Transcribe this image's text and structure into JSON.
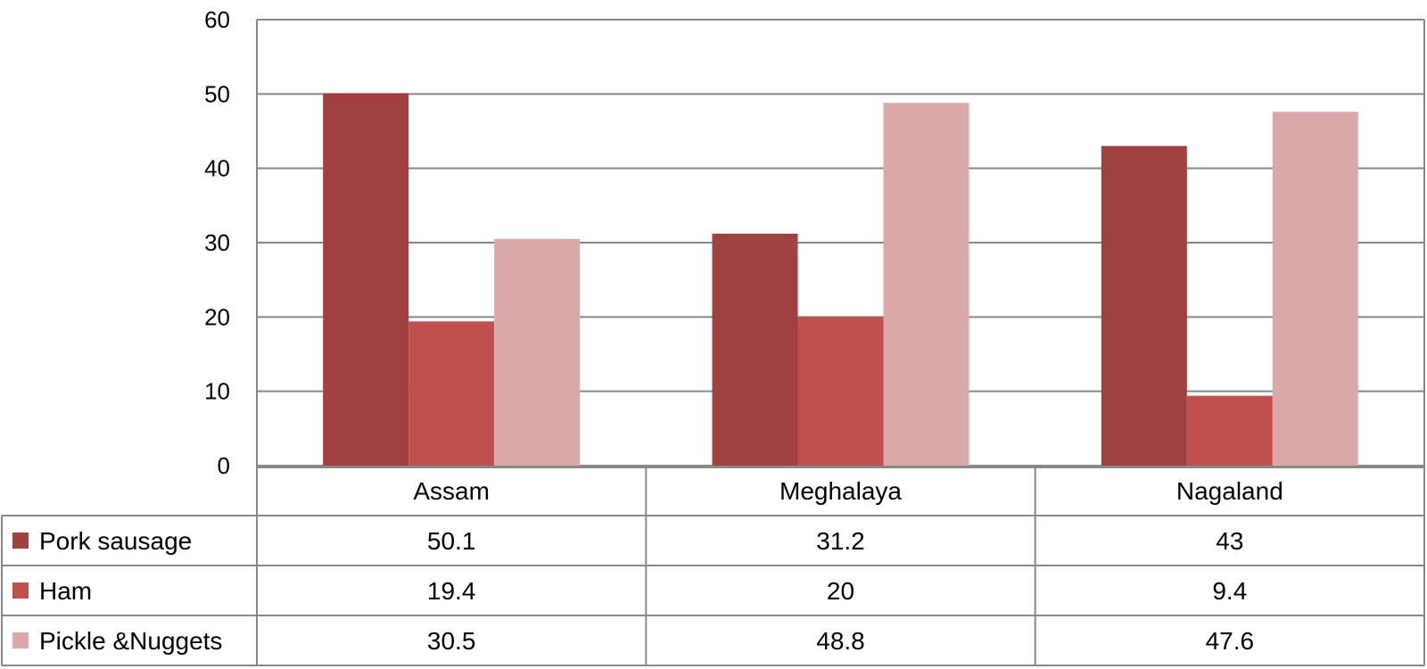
{
  "chart_data": {
    "type": "bar",
    "categories": [
      "Assam",
      "Meghalaya",
      "Nagaland"
    ],
    "series": [
      {
        "name": "Pork sausage",
        "values": [
          50.1,
          31.2,
          43
        ],
        "labels": [
          "50.1",
          "31.2",
          "43"
        ],
        "color": "#a04040"
      },
      {
        "name": "Ham",
        "values": [
          19.4,
          20,
          9.4
        ],
        "labels": [
          "19.4",
          "20",
          "9.4"
        ],
        "color": "#c0504d"
      },
      {
        "name": "Pickle &Nuggets",
        "values": [
          30.5,
          48.8,
          47.6
        ],
        "labels": [
          "30.5",
          "48.8",
          "47.6"
        ],
        "color": "#d9a9a9"
      }
    ],
    "title": "",
    "xlabel": "",
    "ylabel": "",
    "ylim": [
      0,
      60
    ],
    "yticks": [
      "0",
      "10",
      "20",
      "30",
      "40",
      "50",
      "60"
    ],
    "grid": true,
    "legend": "data-table",
    "grid_color": "#888888"
  }
}
